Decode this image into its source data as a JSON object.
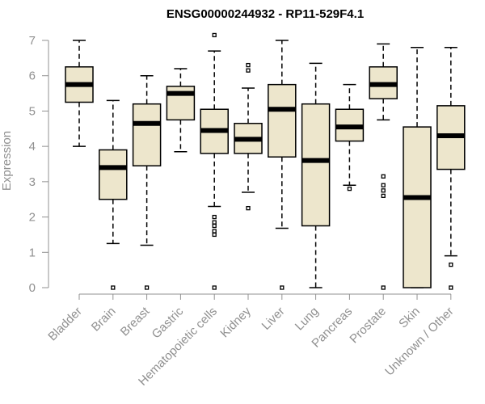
{
  "chart_data": {
    "type": "boxplot",
    "title": "ENSG00000244932 - RP11-529F4.1",
    "xlabel": "",
    "ylabel": "Expression",
    "ylim": [
      0,
      7
    ],
    "yticks": [
      0,
      1,
      2,
      3,
      4,
      5,
      6,
      7
    ],
    "box_color": "#ede6cc",
    "axis_color": "#909090",
    "categories": [
      "Bladder",
      "Brain",
      "Breast",
      "Gastric",
      "Hematopoietic cells",
      "Kidney",
      "Liver",
      "Lung",
      "Pancreas",
      "Prostate",
      "Skin",
      "Unknown / Other"
    ],
    "boxes": [
      {
        "name": "Bladder",
        "whisker_low": 4.0,
        "q1": 5.25,
        "median": 5.75,
        "q3": 6.25,
        "whisker_high": 7.0,
        "outliers": []
      },
      {
        "name": "Brain",
        "whisker_low": 1.25,
        "q1": 2.5,
        "median": 3.4,
        "q3": 3.9,
        "whisker_high": 5.3,
        "outliers": [
          0.0
        ]
      },
      {
        "name": "Breast",
        "whisker_low": 1.2,
        "q1": 3.45,
        "median": 4.65,
        "q3": 5.2,
        "whisker_high": 6.0,
        "outliers": [
          0.0
        ]
      },
      {
        "name": "Gastric",
        "whisker_low": 3.85,
        "q1": 4.75,
        "median": 5.5,
        "q3": 5.7,
        "whisker_high": 6.2,
        "outliers": []
      },
      {
        "name": "Hematopoietic cells",
        "whisker_low": 2.3,
        "q1": 3.8,
        "median": 4.45,
        "q3": 5.05,
        "whisker_high": 6.7,
        "outliers": [
          7.15,
          1.5,
          1.6,
          1.75,
          1.85,
          2.0,
          0.0
        ]
      },
      {
        "name": "Kidney",
        "whisker_low": 2.7,
        "q1": 3.8,
        "median": 4.2,
        "q3": 4.65,
        "whisker_high": 5.65,
        "outliers": [
          6.3,
          6.15,
          2.25
        ]
      },
      {
        "name": "Liver",
        "whisker_low": 1.68,
        "q1": 3.7,
        "median": 5.05,
        "q3": 5.75,
        "whisker_high": 7.0,
        "outliers": [
          0.0
        ]
      },
      {
        "name": "Lung",
        "whisker_low": 0.0,
        "q1": 1.75,
        "median": 3.6,
        "q3": 5.2,
        "whisker_high": 6.35,
        "outliers": []
      },
      {
        "name": "Pancreas",
        "whisker_low": 2.9,
        "q1": 4.15,
        "median": 4.55,
        "q3": 5.05,
        "whisker_high": 5.75,
        "outliers": [
          2.8
        ]
      },
      {
        "name": "Prostate",
        "whisker_low": 4.75,
        "q1": 5.35,
        "median": 5.75,
        "q3": 6.25,
        "whisker_high": 6.9,
        "outliers": [
          3.15,
          2.9,
          2.75,
          2.6,
          0.0
        ]
      },
      {
        "name": "Skin",
        "whisker_low": 0.0,
        "q1": 0.0,
        "median": 2.55,
        "q3": 4.55,
        "whisker_high": 6.8,
        "outliers": []
      },
      {
        "name": "Unknown / Other",
        "whisker_low": 0.9,
        "q1": 3.35,
        "median": 4.3,
        "q3": 5.15,
        "whisker_high": 6.8,
        "outliers": [
          0.65,
          0.0
        ]
      }
    ]
  }
}
